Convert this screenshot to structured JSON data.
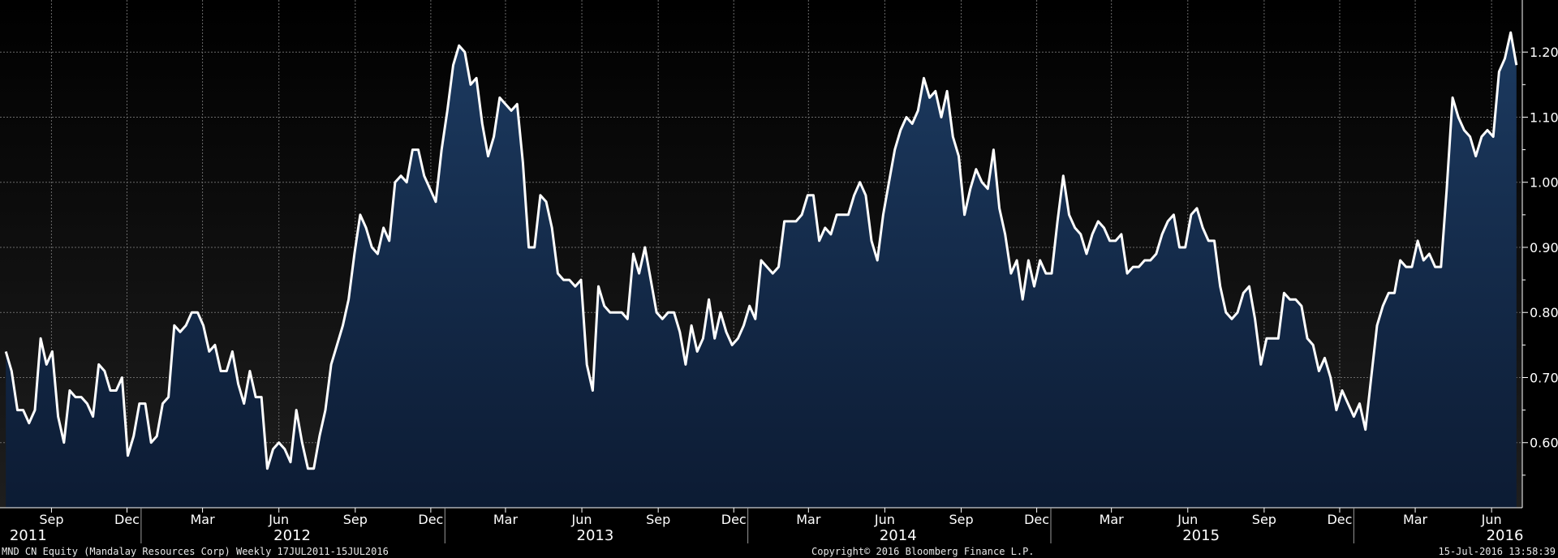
{
  "footer": {
    "left": "MND CN Equity (Mandalay Resources Corp)  Weekly 17JUL2011-15JUL2016",
    "center": "Copyright© 2016 Bloomberg Finance L.P.",
    "right": "15-Jul-2016 13:58:39"
  },
  "colors": {
    "background_top": "#000000",
    "background_bottom": "#1e1e1e",
    "area_top": "#1c3a60",
    "area_bottom": "#0c1b33",
    "line": "#ffffff",
    "grid": "#6a6a6a"
  },
  "chart_data": {
    "type": "area",
    "x_start": "2011-07-22",
    "x_end": "2016-07-15",
    "x_step": "weekly",
    "xlim": [
      "2011-07-15",
      "2016-07-22"
    ],
    "ylim": [
      0.5,
      1.28
    ],
    "grid": true,
    "y_ticks": [
      0.6,
      0.7,
      0.8,
      0.9,
      1.0,
      1.1,
      1.2
    ],
    "y_tick_labels": [
      "0.60",
      "0.70",
      "0.80",
      "0.90",
      "1.00",
      "1.10",
      "1.20"
    ],
    "month_ticks": [
      {
        "date": "2011-09-15",
        "label": "Sep"
      },
      {
        "date": "2011-12-15",
        "label": "Dec"
      },
      {
        "date": "2012-03-15",
        "label": "Mar"
      },
      {
        "date": "2012-06-15",
        "label": "Jun"
      },
      {
        "date": "2012-09-15",
        "label": "Sep"
      },
      {
        "date": "2012-12-15",
        "label": "Dec"
      },
      {
        "date": "2013-03-15",
        "label": "Mar"
      },
      {
        "date": "2013-06-15",
        "label": "Jun"
      },
      {
        "date": "2013-09-15",
        "label": "Sep"
      },
      {
        "date": "2013-12-15",
        "label": "Dec"
      },
      {
        "date": "2014-03-15",
        "label": "Mar"
      },
      {
        "date": "2014-06-15",
        "label": "Jun"
      },
      {
        "date": "2014-09-15",
        "label": "Sep"
      },
      {
        "date": "2014-12-15",
        "label": "Dec"
      },
      {
        "date": "2015-03-15",
        "label": "Mar"
      },
      {
        "date": "2015-06-15",
        "label": "Jun"
      },
      {
        "date": "2015-09-15",
        "label": "Sep"
      },
      {
        "date": "2015-12-15",
        "label": "Dec"
      },
      {
        "date": "2016-03-15",
        "label": "Mar"
      },
      {
        "date": "2016-06-15",
        "label": "Jun"
      }
    ],
    "year_ticks": [
      {
        "date": "2011-08-18",
        "label": "2011"
      },
      {
        "date": "2012-07-01",
        "label": "2012"
      },
      {
        "date": "2013-07-01",
        "label": "2013"
      },
      {
        "date": "2014-07-01",
        "label": "2014"
      },
      {
        "date": "2015-07-01",
        "label": "2015"
      },
      {
        "date": "2016-07-01",
        "label": "2016"
      }
    ],
    "year_boundaries": [
      "2012-01-01",
      "2013-01-01",
      "2014-01-01",
      "2015-01-01",
      "2016-01-01"
    ],
    "values": [
      0.74,
      0.71,
      0.65,
      0.65,
      0.63,
      0.65,
      0.76,
      0.72,
      0.74,
      0.64,
      0.6,
      0.68,
      0.67,
      0.67,
      0.66,
      0.64,
      0.72,
      0.71,
      0.68,
      0.68,
      0.7,
      0.58,
      0.61,
      0.66,
      0.66,
      0.6,
      0.61,
      0.66,
      0.67,
      0.78,
      0.77,
      0.78,
      0.8,
      0.8,
      0.78,
      0.74,
      0.75,
      0.71,
      0.71,
      0.74,
      0.69,
      0.66,
      0.71,
      0.67,
      0.67,
      0.56,
      0.59,
      0.6,
      0.59,
      0.57,
      0.65,
      0.6,
      0.56,
      0.56,
      0.61,
      0.65,
      0.72,
      0.75,
      0.78,
      0.82,
      0.89,
      0.95,
      0.93,
      0.9,
      0.89,
      0.93,
      0.91,
      1.0,
      1.01,
      1.0,
      1.05,
      1.05,
      1.01,
      0.99,
      0.97,
      1.05,
      1.11,
      1.18,
      1.21,
      1.2,
      1.15,
      1.16,
      1.09,
      1.04,
      1.07,
      1.13,
      1.12,
      1.11,
      1.12,
      1.03,
      0.9,
      0.9,
      0.98,
      0.97,
      0.93,
      0.86,
      0.85,
      0.85,
      0.84,
      0.85,
      0.72,
      0.68,
      0.84,
      0.81,
      0.8,
      0.8,
      0.8,
      0.79,
      0.89,
      0.86,
      0.9,
      0.85,
      0.8,
      0.79,
      0.8,
      0.8,
      0.77,
      0.72,
      0.78,
      0.74,
      0.76,
      0.82,
      0.76,
      0.8,
      0.77,
      0.75,
      0.76,
      0.78,
      0.81,
      0.79,
      0.88,
      0.87,
      0.86,
      0.87,
      0.94,
      0.94,
      0.94,
      0.95,
      0.98,
      0.98,
      0.91,
      0.93,
      0.92,
      0.95,
      0.95,
      0.95,
      0.98,
      1.0,
      0.98,
      0.91,
      0.88,
      0.95,
      1.0,
      1.05,
      1.08,
      1.1,
      1.09,
      1.11,
      1.16,
      1.13,
      1.14,
      1.1,
      1.14,
      1.07,
      1.04,
      0.95,
      0.99,
      1.02,
      1.0,
      0.99,
      1.05,
      0.96,
      0.92,
      0.86,
      0.88,
      0.82,
      0.88,
      0.84,
      0.88,
      0.86,
      0.86,
      0.94,
      1.01,
      0.95,
      0.93,
      0.92,
      0.89,
      0.92,
      0.94,
      0.93,
      0.91,
      0.91,
      0.92,
      0.86,
      0.87,
      0.87,
      0.88,
      0.88,
      0.89,
      0.92,
      0.94,
      0.95,
      0.9,
      0.9,
      0.95,
      0.96,
      0.93,
      0.91,
      0.91,
      0.84,
      0.8,
      0.79,
      0.8,
      0.83,
      0.84,
      0.79,
      0.72,
      0.76,
      0.76,
      0.76,
      0.83,
      0.82,
      0.82,
      0.81,
      0.76,
      0.75,
      0.71,
      0.73,
      0.7,
      0.65,
      0.68,
      0.66,
      0.64,
      0.66,
      0.62,
      0.7,
      0.78,
      0.81,
      0.83,
      0.83,
      0.88,
      0.87,
      0.87,
      0.91,
      0.88,
      0.89,
      0.87,
      0.87,
      0.99,
      1.13,
      1.1,
      1.08,
      1.07,
      1.04,
      1.07,
      1.08,
      1.07,
      1.17,
      1.19,
      1.23,
      1.18
    ]
  }
}
